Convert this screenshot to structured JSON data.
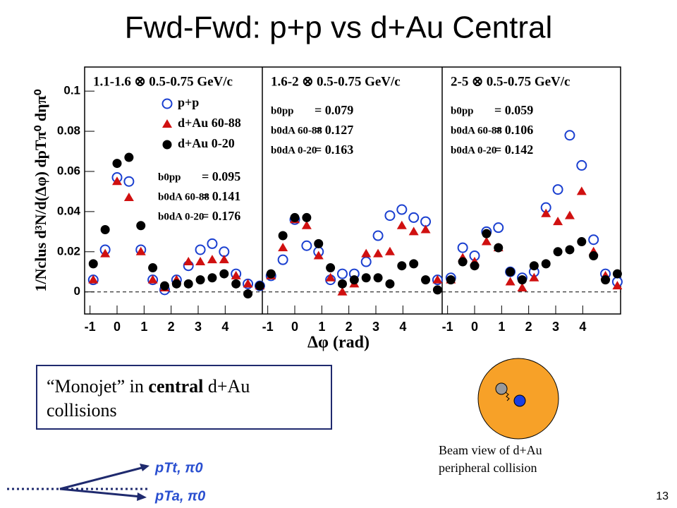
{
  "title": "Fwd-Fwd: p+p vs d+Au Central",
  "axis_labels": {
    "x": "Δφ (rad)",
    "y": "1/Nclus d³N/d(Δφ) dpTπ⁰ dηπ⁰"
  },
  "chart_data": [
    {
      "type": "scatter",
      "title": "1.1-1.6 ⊗ 0.5-0.75 GeV/c",
      "legend": true,
      "x": [
        -0.88,
        -0.44,
        0,
        0.44,
        0.88,
        1.32,
        1.76,
        2.2,
        2.64,
        3.08,
        3.52,
        3.96,
        4.4,
        4.84,
        5.28
      ],
      "xlim": [
        -1.2,
        5.4
      ],
      "xticks": [
        -1,
        0,
        1,
        2,
        3,
        4
      ],
      "ylim": [
        -0.011,
        0.112
      ],
      "yticks": [
        0,
        0.02,
        0.04,
        0.06,
        0.08,
        0.1
      ],
      "series": [
        {
          "name": "p+p",
          "color": "#1a3fd0",
          "marker": "open-circle",
          "values": [
            0.006,
            0.021,
            0.057,
            0.055,
            0.021,
            0.006,
            0.001,
            0.006,
            0.013,
            0.021,
            0.024,
            0.02,
            0.009,
            0.004,
            0.003
          ]
        },
        {
          "name": "d+Au 60-88",
          "color": "#d01010",
          "marker": "triangle",
          "values": [
            0.006,
            0.019,
            0.055,
            0.047,
            0.02,
            0.006,
            0.002,
            0.006,
            0.015,
            0.015,
            0.016,
            0.016,
            0.008,
            0.004,
            0.003
          ]
        },
        {
          "name": "d+Au 0-20",
          "color": "#000000",
          "marker": "circle",
          "values": [
            0.014,
            0.031,
            0.064,
            0.067,
            0.033,
            0.012,
            0.003,
            0.004,
            0.004,
            0.006,
            0.007,
            0.009,
            0.004,
            -0.001,
            0.003
          ]
        }
      ],
      "annotations": [
        {
          "label": "b0pp",
          "text": "= 0.095"
        },
        {
          "label": "b0dA 60-88",
          "text": "= 0.141"
        },
        {
          "label": "b0dA 0-20",
          "text": "= 0.176"
        }
      ]
    },
    {
      "type": "scatter",
      "title": "1.6-2 ⊗ 0.5-0.75 GeV/c",
      "x": [
        -0.88,
        -0.44,
        0,
        0.44,
        0.88,
        1.32,
        1.76,
        2.2,
        2.64,
        3.08,
        3.52,
        3.96,
        4.4,
        4.84,
        5.28
      ],
      "xlim": [
        -1.2,
        5.4
      ],
      "xticks": [
        -1,
        0,
        1,
        2,
        3,
        4
      ],
      "ylim": [
        -0.011,
        0.112
      ],
      "series": [
        {
          "color": "#1a3fd0",
          "marker": "open-circle",
          "values": [
            0.008,
            0.016,
            0.036,
            0.023,
            0.02,
            0.006,
            0.009,
            0.009,
            0.015,
            0.028,
            0.038,
            0.041,
            0.037,
            0.035,
            0.006
          ]
        },
        {
          "color": "#d01010",
          "marker": "triangle",
          "values": [
            0.008,
            0.022,
            0.036,
            0.033,
            0.018,
            0.007,
            0.0,
            0.004,
            0.019,
            0.019,
            0.02,
            0.033,
            0.03,
            0.031,
            0.006
          ]
        },
        {
          "color": "#000000",
          "marker": "circle",
          "values": [
            0.009,
            0.028,
            0.037,
            0.037,
            0.024,
            0.012,
            0.004,
            0.006,
            0.007,
            0.007,
            0.004,
            0.013,
            0.014,
            0.006,
            0.001
          ]
        }
      ],
      "annotations": [
        {
          "label": "b0pp",
          "text": "= 0.079"
        },
        {
          "label": "b0dA 60-88",
          "text": "= 0.127"
        },
        {
          "label": "b0dA 0-20",
          "text": "= 0.163"
        }
      ]
    },
    {
      "type": "scatter",
      "title": "2-5 ⊗ 0.5-0.75 GeV/c",
      "x": [
        -0.88,
        -0.44,
        0,
        0.44,
        0.88,
        1.32,
        1.76,
        2.2,
        2.64,
        3.08,
        3.52,
        3.96,
        4.4,
        4.84,
        5.28
      ],
      "xlim": [
        -1.2,
        5.4
      ],
      "xticks": [
        -1,
        0,
        1,
        2,
        3,
        4
      ],
      "ylim": [
        -0.011,
        0.112
      ],
      "series": [
        {
          "color": "#1a3fd0",
          "marker": "open-circle",
          "values": [
            0.007,
            0.022,
            0.018,
            0.03,
            0.032,
            0.01,
            0.007,
            0.01,
            0.042,
            0.051,
            0.078,
            0.063,
            0.026,
            0.009,
            0.005
          ]
        },
        {
          "color": "#d01010",
          "marker": "triangle",
          "values": [
            0.006,
            0.017,
            0.015,
            0.025,
            0.022,
            0.005,
            0.002,
            0.007,
            0.039,
            0.035,
            0.038,
            0.05,
            0.02,
            0.008,
            0.003
          ]
        },
        {
          "color": "#000000",
          "marker": "circle",
          "values": [
            0.006,
            0.015,
            0.013,
            0.029,
            0.022,
            0.01,
            0.006,
            0.013,
            0.014,
            0.02,
            0.021,
            0.025,
            0.018,
            0.006,
            0.009
          ]
        }
      ],
      "annotations": [
        {
          "label": "b0pp",
          "text": "= 0.059"
        },
        {
          "label": "b0dA 60-88",
          "text": "= 0.106"
        },
        {
          "label": "b0dA 0-20",
          "text": "= 0.142"
        }
      ]
    }
  ],
  "box": {
    "parts": [
      "“Monojet” in ",
      "central",
      " d+Au"
    ],
    "line2": "collisions"
  },
  "caption": [
    "Beam view of d+Au",
    "peripheral collision"
  ],
  "arrow_labels": [
    "pTt, π0",
    "pTa, π0"
  ],
  "page_number": "13"
}
